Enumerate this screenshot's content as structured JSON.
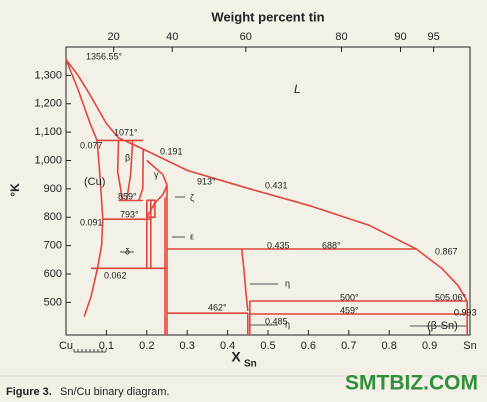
{
  "chart_data": {
    "type": "phase-diagram",
    "title": "Weight percent tin",
    "ylabel": "°K",
    "xlabel": "X",
    "xlabel_sub": "Sn",
    "color": "#e2453b",
    "xlim": [
      0,
      1
    ],
    "ylim": [
      385,
      1400
    ],
    "xticks": [
      {
        "value": 0,
        "label": "Cu"
      },
      0.1,
      0.2,
      0.3,
      0.4,
      0.5,
      0.6,
      0.7,
      0.8,
      0.9,
      {
        "value": 1,
        "label": "Sn"
      }
    ],
    "yticks": [
      500,
      600,
      700,
      800,
      900,
      {
        "value": 1000,
        "label": "1,000"
      },
      {
        "value": 1100,
        "label": "1,100"
      },
      {
        "value": 1200,
        "label": "1,200"
      },
      {
        "value": 1300,
        "label": "1,300"
      }
    ],
    "top_ticks": [
      {
        "value": 0.118,
        "label": "20"
      },
      {
        "value": 0.263,
        "label": "40"
      },
      {
        "value": 0.445,
        "label": "60"
      },
      {
        "value": 0.682,
        "label": "80"
      },
      {
        "value": 0.828,
        "label": "90"
      },
      {
        "value": 0.91,
        "label": "95"
      }
    ],
    "series": [
      {
        "x": [
          0,
          0.03,
          0.06,
          0.1,
          0.13,
          0.191,
          0.3,
          0.45,
          0.6,
          0.75,
          0.867,
          0.93,
          0.97,
          0.993
        ],
        "values": [
          1356,
          1300,
          1230,
          1130,
          1080,
          1040,
          965,
          902,
          842,
          772,
          688,
          620,
          560,
          505
        ]
      },
      {
        "x": [
          0,
          0.03,
          0.06,
          0.077
        ],
        "values": [
          1356,
          1250,
          1130,
          1071
        ]
      },
      {
        "x": [
          0.077,
          0.085,
          0.091,
          0.088,
          0.078,
          0.062,
          0.045
        ],
        "values": [
          1071,
          930,
          793,
          700,
          620,
          520,
          450
        ]
      },
      {
        "x": [
          0.077,
          0.191
        ],
        "values": [
          1071,
          1071
        ]
      },
      {
        "x": [
          0.13,
          0.128,
          0.14
        ],
        "values": [
          1071,
          960,
          859
        ]
      },
      {
        "x": [
          0.165,
          0.16,
          0.15
        ],
        "values": [
          1071,
          950,
          859
        ]
      },
      {
        "x": [
          0.13,
          0.19
        ],
        "values": [
          859,
          859
        ]
      },
      {
        "x": [
          0.091,
          0.21
        ],
        "values": [
          793,
          793
        ]
      },
      {
        "x": [
          0.191,
          0.19,
          0.18
        ],
        "values": [
          1040,
          900,
          859
        ]
      },
      {
        "x": [
          0.2,
          0.24,
          0.25
        ],
        "values": [
          1000,
          950,
          913
        ]
      },
      {
        "x": [
          0.25,
          0.24,
          0.22,
          0.2
        ],
        "values": [
          913,
          880,
          850,
          800
        ]
      },
      {
        "x": [
          0.2,
          0.22,
          0.22,
          0.2,
          0.2
        ],
        "values": [
          860,
          860,
          800,
          800,
          860
        ]
      },
      {
        "x": [
          0.2,
          0.2
        ],
        "values": [
          860,
          620
        ]
      },
      {
        "x": [
          0.21,
          0.21
        ],
        "values": [
          860,
          620
        ]
      },
      {
        "x": [
          0.062,
          0.25
        ],
        "values": [
          620,
          620
        ]
      },
      {
        "x": [
          0.245,
          0.245
        ],
        "values": [
          870,
          385
        ]
      },
      {
        "x": [
          0.25,
          0.25
        ],
        "values": [
          913,
          385
        ]
      },
      {
        "x": [
          0.25,
          0.867
        ],
        "values": [
          688,
          688
        ]
      },
      {
        "x": [
          0.435,
          0.44,
          0.445,
          0.45
        ],
        "values": [
          688,
          620,
          540,
          470
        ]
      },
      {
        "x": [
          0.455,
          0.455
        ],
        "values": [
          505,
          385
        ]
      },
      {
        "x": [
          0.45,
          0.45
        ],
        "values": [
          462,
          385
        ]
      },
      {
        "x": [
          0.25,
          0.45
        ],
        "values": [
          462,
          462
        ]
      },
      {
        "x": [
          0.455,
          0.993
        ],
        "values": [
          505,
          505
        ]
      },
      {
        "x": [
          0.455,
          0.993
        ],
        "values": [
          459,
          459
        ]
      },
      {
        "x": [
          0.993,
          0.993
        ],
        "values": [
          505,
          385
        ]
      }
    ],
    "annotations": [
      "1356.55°",
      "L",
      "1071°",
      "0.077",
      "0.191",
      "β",
      "γ",
      "(Cu)",
      "859°",
      "913°",
      "0.431",
      "0.091",
      "793°",
      "ζ",
      "ε",
      "δ",
      "0.435",
      "688°",
      "0.867",
      "η",
      "0.062",
      "462°",
      "500°",
      "505.06°",
      "0.485",
      "η",
      "459°",
      "0.993",
      "(β-Sn)"
    ]
  },
  "caption": {
    "label": "Figure 3.",
    "text": "Sn/Cu binary diagram."
  },
  "logo": "SMTBIZ.COM"
}
